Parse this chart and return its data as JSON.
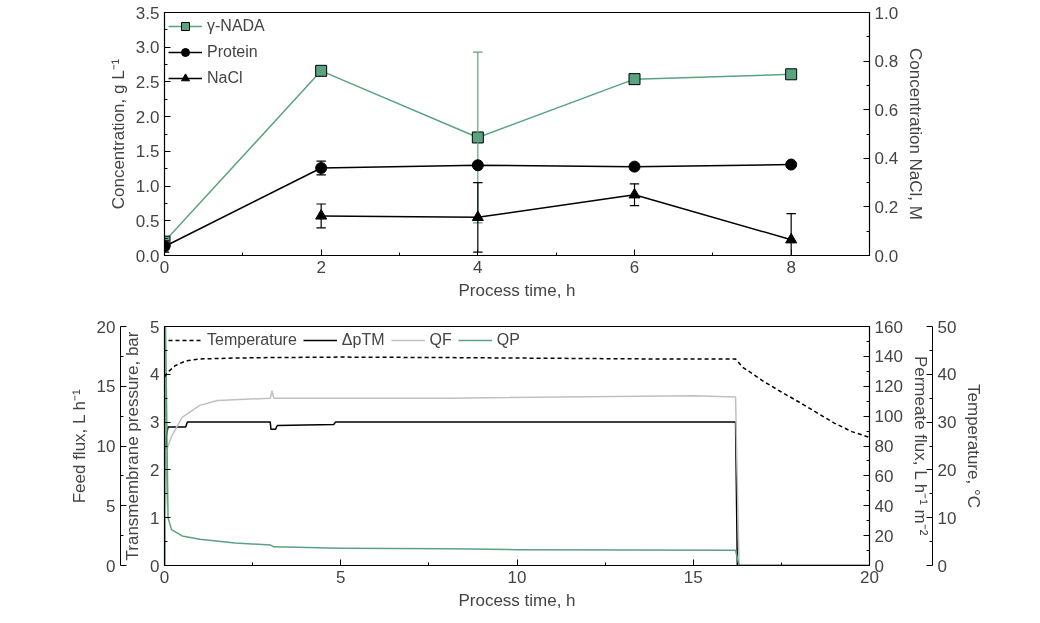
{
  "chart_data": [
    {
      "type": "line",
      "xlabel": "Process time, h",
      "ylabel": "Concentration, g L⁻¹",
      "y2label": "Concentration NaCl, M",
      "xlim": [
        0,
        9
      ],
      "xticks": [
        0,
        2,
        4,
        6,
        8
      ],
      "ylim": [
        0,
        3.5
      ],
      "yticks": [
        {
          "value": 0,
          "label": "0.0"
        },
        0.5,
        {
          "value": 1,
          "label": "1.0"
        },
        1.5,
        {
          "value": 2,
          "label": "2.0"
        },
        2.5,
        {
          "value": 3,
          "label": "3.0"
        },
        3.5
      ],
      "y2lim": [
        0,
        1
      ],
      "y2ticks": [
        {
          "value": 0,
          "label": "0.0"
        },
        0.2,
        0.4,
        0.6,
        0.8,
        {
          "value": 1,
          "label": "1.0"
        }
      ],
      "legend": "top left",
      "x": [
        0,
        2,
        4,
        6,
        8
      ],
      "series": [
        {
          "name": "γ-NADA",
          "color": "#5aa37f",
          "marker": "square",
          "values": [
            0.2,
            2.66,
            1.7,
            2.54,
            2.61
          ],
          "errors": [
            null,
            null,
            1.23,
            null,
            null
          ]
        },
        {
          "name": "Protein",
          "color": "#000000",
          "marker": "circle",
          "values": [
            0.13,
            1.26,
            1.3,
            1.28,
            1.31
          ],
          "errors": [
            0.08,
            0.1,
            null,
            null,
            null
          ]
        },
        {
          "name": "NaCl",
          "color": "#000000",
          "marker": "triangle",
          "axis": "y2",
          "values": [
            null,
            0.163,
            0.157,
            0.25,
            0.065
          ],
          "errors": [
            null,
            0.049,
            0.143,
            0.045,
            [
              0.0,
              0.172
            ]
          ]
        }
      ]
    },
    {
      "type": "line",
      "xlabel": "Process time, h",
      "ylabel": "Transmembrane pressure, bar",
      "y2label": "Permeate flux, L h⁻¹ m⁻²",
      "y3label": "Feed flux, L h⁻¹",
      "xlim": [
        0,
        20
      ],
      "xticks": [
        0,
        5,
        10,
        15,
        20
      ],
      "ylim": [
        0,
        5
      ],
      "yticks": [
        0,
        1,
        2,
        3,
        4,
        5
      ],
      "y2lim": [
        0,
        160
      ],
      "y2ticks": [
        0,
        20,
        40,
        60,
        80,
        100,
        120,
        140,
        160
      ],
      "y3lim": [
        0,
        20
      ],
      "y3ticks": [
        0,
        5,
        10,
        15,
        20
      ],
      "legend": "top left",
      "series": [
        {
          "name": "ΔpTM",
          "color": "#000000",
          "x": [
            0,
            0.05,
            0.1,
            0.6,
            0.65,
            3.0,
            3.02,
            3.15,
            3.2,
            4.8,
            4.85,
            16.2,
            16.25,
            20
          ],
          "values": [
            0,
            2.7,
            2.9,
            2.9,
            3.0,
            3.0,
            2.85,
            2.85,
            2.93,
            2.95,
            3.0,
            3.0,
            0,
            0
          ]
        },
        {
          "name": "QF",
          "color": "#c0c0c0",
          "axis": "y3",
          "x": [
            0,
            0.05,
            0.2,
            0.5,
            1,
            1.5,
            3,
            3.05,
            3.1,
            8,
            15,
            16.2,
            16.3,
            20
          ],
          "values": [
            0,
            9.6,
            10.8,
            12.4,
            13.4,
            13.8,
            14,
            14.6,
            14,
            14,
            14.2,
            14.1,
            0,
            0
          ]
        },
        {
          "name": "QP",
          "color": "#5aa37f",
          "axis": "y2",
          "x": [
            0,
            0.03,
            0.1,
            0.2,
            0.5,
            1,
            2,
            3,
            3.1,
            5,
            8,
            10,
            16.2,
            16.3,
            20
          ],
          "values": [
            0,
            160,
            32,
            24,
            19.8,
            17.6,
            15,
            13.8,
            12.5,
            11.5,
            11.2,
            10.6,
            10.2,
            0,
            0
          ]
        }
      ]
    },
    {
      "type": "line",
      "ylabel": "Temperature, °C",
      "xlim": [
        0,
        20
      ],
      "ylim": [
        0,
        50
      ],
      "yticks": [
        0,
        10,
        20,
        30,
        40,
        50
      ],
      "tick_labels": "y",
      "series": [
        {
          "name": "Temperature",
          "color": "#000000",
          "line_style": "dashed",
          "x": [
            0,
            0.1,
            0.3,
            0.6,
            1,
            2,
            3,
            5,
            8,
            10,
            12,
            14,
            16.2,
            16.4,
            17,
            17.5,
            18,
            18.5,
            19,
            19.5,
            20
          ],
          "values": [
            39.5,
            40.5,
            41.8,
            42.8,
            43.2,
            43.4,
            43.5,
            43.6,
            43.5,
            43.4,
            43.3,
            43.2,
            43.2,
            41.5,
            38.5,
            36.3,
            34.2,
            32,
            29.8,
            28,
            26.8
          ]
        }
      ]
    }
  ]
}
